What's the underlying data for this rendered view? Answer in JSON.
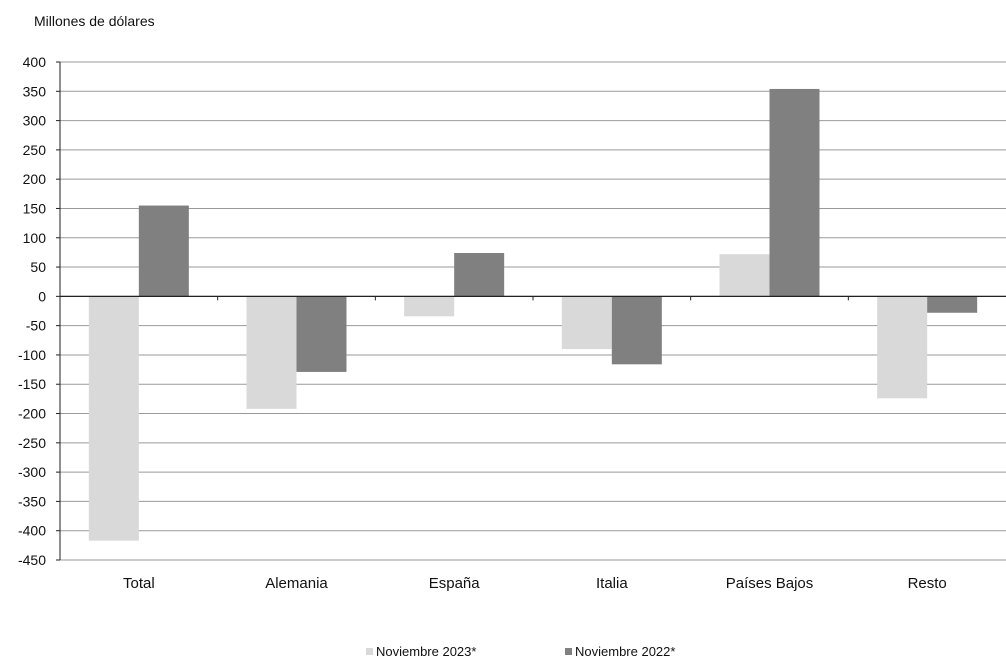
{
  "chart_data": {
    "type": "bar",
    "ylabel": "Millones de dólares",
    "categories": [
      "Total",
      "Alemania",
      "España",
      "Italia",
      "Países Bajos",
      "Resto"
    ],
    "series": [
      {
        "name": "Noviembre 2023*",
        "values": [
          -417,
          -192,
          -34,
          -90,
          72,
          -174
        ],
        "color": "#d9d9d9"
      },
      {
        "name": "Noviembre 2022*",
        "values": [
          155,
          -129,
          74,
          -116,
          354,
          -28
        ],
        "color": "#808080"
      }
    ],
    "ylim": [
      -450,
      400
    ],
    "yticks": [
      400,
      350,
      300,
      250,
      200,
      150,
      100,
      50,
      0,
      -50,
      -100,
      -150,
      -200,
      -250,
      -300,
      -350,
      -400,
      -450
    ],
    "grid": true,
    "legend_position": "bottom"
  }
}
